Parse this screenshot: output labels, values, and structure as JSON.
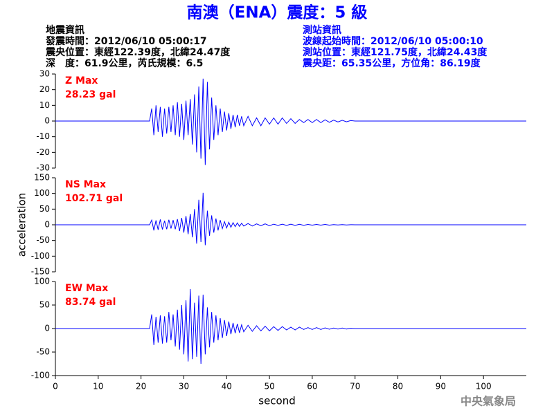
{
  "title": "南澳（ENA）震度：5 級",
  "info_left": [
    "地震資訊",
    "發震時間：2012/06/10 05:00:17",
    "震央位置：東經122.39度，北緯24.47度",
    "深　度：61.9公里，芮氏規模：6.5"
  ],
  "info_right": [
    "測站資訊",
    "波線起始時間：2012/06/10 05:00:10",
    "測站位置：東經121.75度，北緯24.43度",
    "震央距：65.35公里，方位角：86.19度"
  ],
  "footer": "中央氣象局",
  "chart_data": [
    {
      "type": "line",
      "annotations": [
        "Z Max",
        "28.23 gal"
      ],
      "color": "#0000ff",
      "annotation_color": "#ff0000",
      "xlim": [
        0,
        110
      ],
      "ylim": [
        -30,
        30
      ],
      "yticks": [
        -30,
        -20,
        -10,
        0,
        10,
        20,
        30
      ],
      "x": [
        0,
        22,
        22.5,
        23,
        23.5,
        24,
        24.5,
        25,
        25.5,
        26,
        26.5,
        27,
        27.5,
        28,
        28.5,
        29,
        29.5,
        30,
        30.5,
        31,
        31.5,
        32,
        32.5,
        33,
        33.5,
        34,
        34.5,
        35,
        35.5,
        36,
        36.5,
        37,
        37.5,
        38,
        38.5,
        39,
        39.5,
        40,
        40.5,
        41,
        41.5,
        42,
        42.5,
        43,
        43.5,
        44,
        45,
        46,
        47,
        48,
        49,
        50,
        51,
        52,
        53,
        54,
        55,
        56,
        57,
        58,
        59,
        60,
        61,
        62,
        63,
        64,
        65,
        66,
        67,
        68,
        69,
        70,
        110
      ],
      "values": [
        0,
        0,
        8,
        -9,
        10,
        -7,
        9,
        -10,
        8,
        -8,
        9,
        -7,
        10,
        -9,
        12,
        -10,
        11,
        -12,
        13,
        -9,
        14,
        -15,
        17,
        -20,
        22,
        -24,
        27,
        -28,
        25,
        -18,
        15,
        -12,
        10,
        -9,
        8,
        -7,
        6,
        -6,
        5,
        -5,
        4,
        -4,
        4,
        -3,
        3,
        -3,
        3,
        -3,
        2,
        -3,
        2,
        -2,
        2,
        -2,
        2,
        -1.5,
        1.5,
        -1.5,
        1,
        -1,
        1,
        -1,
        1,
        -1,
        0.8,
        -0.8,
        0.6,
        -0.6,
        0.5,
        -0.5,
        0.3,
        0,
        0
      ]
    },
    {
      "type": "line",
      "annotations": [
        "NS Max",
        "102.71 gal"
      ],
      "color": "#0000ff",
      "annotation_color": "#ff0000",
      "ylabel": "acceleration",
      "xlim": [
        0,
        110
      ],
      "ylim": [
        -150,
        150
      ],
      "yticks": [
        -150,
        -100,
        -50,
        0,
        50,
        100,
        150
      ],
      "x": [
        0,
        22,
        22.5,
        23,
        23.5,
        24,
        24.5,
        25,
        25.5,
        26,
        26.5,
        27,
        27.5,
        28,
        28.5,
        29,
        29.5,
        30,
        30.5,
        31,
        31.5,
        32,
        32.5,
        33,
        33.5,
        34,
        34.5,
        35,
        35.5,
        36,
        36.5,
        37,
        37.5,
        38,
        38.5,
        39,
        39.5,
        40,
        40.5,
        41,
        41.5,
        42,
        42.5,
        43,
        43.5,
        44,
        45,
        46,
        47,
        48,
        49,
        50,
        51,
        52,
        53,
        54,
        55,
        56,
        57,
        58,
        59,
        60,
        61,
        62,
        63,
        64,
        65,
        66,
        67,
        68,
        69,
        70,
        110
      ],
      "values": [
        0,
        0,
        15,
        -18,
        14,
        -16,
        17,
        -15,
        13,
        -14,
        16,
        -12,
        15,
        -14,
        18,
        -20,
        22,
        -25,
        28,
        -30,
        35,
        -40,
        50,
        -60,
        80,
        -55,
        102,
        -65,
        45,
        -35,
        30,
        -25,
        20,
        -18,
        15,
        -12,
        10,
        -10,
        8,
        -8,
        7,
        -6,
        6,
        -5,
        5,
        -4,
        4,
        -4,
        3,
        -3,
        3,
        -3,
        2,
        -2,
        2,
        -2,
        2,
        -2,
        1.5,
        -1.5,
        1,
        -1,
        1,
        -1,
        1,
        -1,
        0.5,
        -0.5,
        0.5,
        -0.5,
        0.3,
        0,
        0
      ]
    },
    {
      "type": "line",
      "annotations": [
        "EW Max",
        "83.74 gal"
      ],
      "color": "#0000ff",
      "annotation_color": "#ff0000",
      "xlabel": "second",
      "xlim": [
        0,
        110
      ],
      "xticks": [
        0,
        10,
        20,
        30,
        40,
        50,
        60,
        70,
        80,
        90,
        100
      ],
      "ylim": [
        -100,
        100
      ],
      "yticks": [
        -100,
        -50,
        0,
        50,
        100
      ],
      "x": [
        0,
        22,
        22.5,
        23,
        23.5,
        24,
        24.5,
        25,
        25.5,
        26,
        26.5,
        27,
        27.5,
        28,
        28.5,
        29,
        29.5,
        30,
        30.5,
        31,
        31.5,
        32,
        32.5,
        33,
        33.5,
        34,
        34.5,
        35,
        35.5,
        36,
        36.5,
        37,
        37.5,
        38,
        38.5,
        39,
        39.5,
        40,
        40.5,
        41,
        41.5,
        42,
        42.5,
        43,
        43.5,
        44,
        45,
        46,
        47,
        48,
        49,
        50,
        51,
        52,
        53,
        54,
        55,
        56,
        57,
        58,
        59,
        60,
        61,
        62,
        63,
        64,
        65,
        66,
        67,
        68,
        69,
        70,
        110
      ],
      "values": [
        0,
        0,
        30,
        -35,
        25,
        -30,
        28,
        -32,
        26,
        -30,
        35,
        -25,
        30,
        -38,
        40,
        -45,
        50,
        -55,
        60,
        -70,
        84,
        -65,
        55,
        -60,
        70,
        -75,
        72,
        -55,
        45,
        -40,
        35,
        -30,
        28,
        -25,
        22,
        -20,
        18,
        -16,
        15,
        -12,
        12,
        -10,
        10,
        -9,
        8,
        -7,
        7,
        -6,
        6,
        -5,
        5,
        -5,
        4,
        -4,
        4,
        -3,
        3,
        -3,
        3,
        -2,
        2,
        -2,
        2,
        -2,
        1.5,
        -1.5,
        1,
        -1,
        1,
        -1,
        0.5,
        0,
        0
      ]
    }
  ]
}
